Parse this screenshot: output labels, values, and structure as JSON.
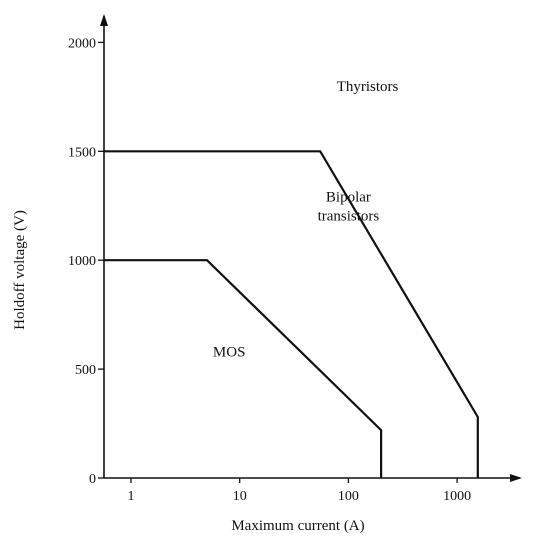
{
  "chart_data": {
    "type": "line",
    "title": "",
    "xlabel": "Maximum current (A)",
    "ylabel": "Holdoff voltage (V)",
    "x_scale": "log",
    "xlim": [
      0.55,
      4000
    ],
    "ylim": [
      0,
      2000
    ],
    "x_ticks": [
      {
        "value": 1,
        "label": "1"
      },
      {
        "value": 10,
        "label": "10"
      },
      {
        "value": 100,
        "label": "100"
      },
      {
        "value": 1000,
        "label": "1000"
      }
    ],
    "y_ticks": [
      {
        "value": 0,
        "label": "0"
      },
      {
        "value": 500,
        "label": "500"
      },
      {
        "value": 1000,
        "label": "1000"
      },
      {
        "value": 1500,
        "label": "1500"
      },
      {
        "value": 2000,
        "label": "2000"
      }
    ],
    "grid": false,
    "legend": "none",
    "series": [
      {
        "name": "MOS",
        "points": [
          [
            0.55,
            1000
          ],
          [
            5,
            1000
          ],
          [
            200,
            220
          ],
          [
            200,
            0
          ]
        ]
      },
      {
        "name": "Bipolar transistors",
        "points": [
          [
            0.55,
            1500
          ],
          [
            55,
            1500
          ],
          [
            1550,
            280
          ],
          [
            1550,
            0
          ]
        ]
      }
    ],
    "regions": [
      {
        "label_lines": [
          "Thyristors"
        ],
        "x": 150,
        "y": 1800
      },
      {
        "label_lines": [
          "Bipolar",
          "transistors"
        ],
        "x": 100,
        "y": 1250
      },
      {
        "label_lines": [
          "MOS"
        ],
        "x": 8,
        "y": 580
      }
    ]
  }
}
